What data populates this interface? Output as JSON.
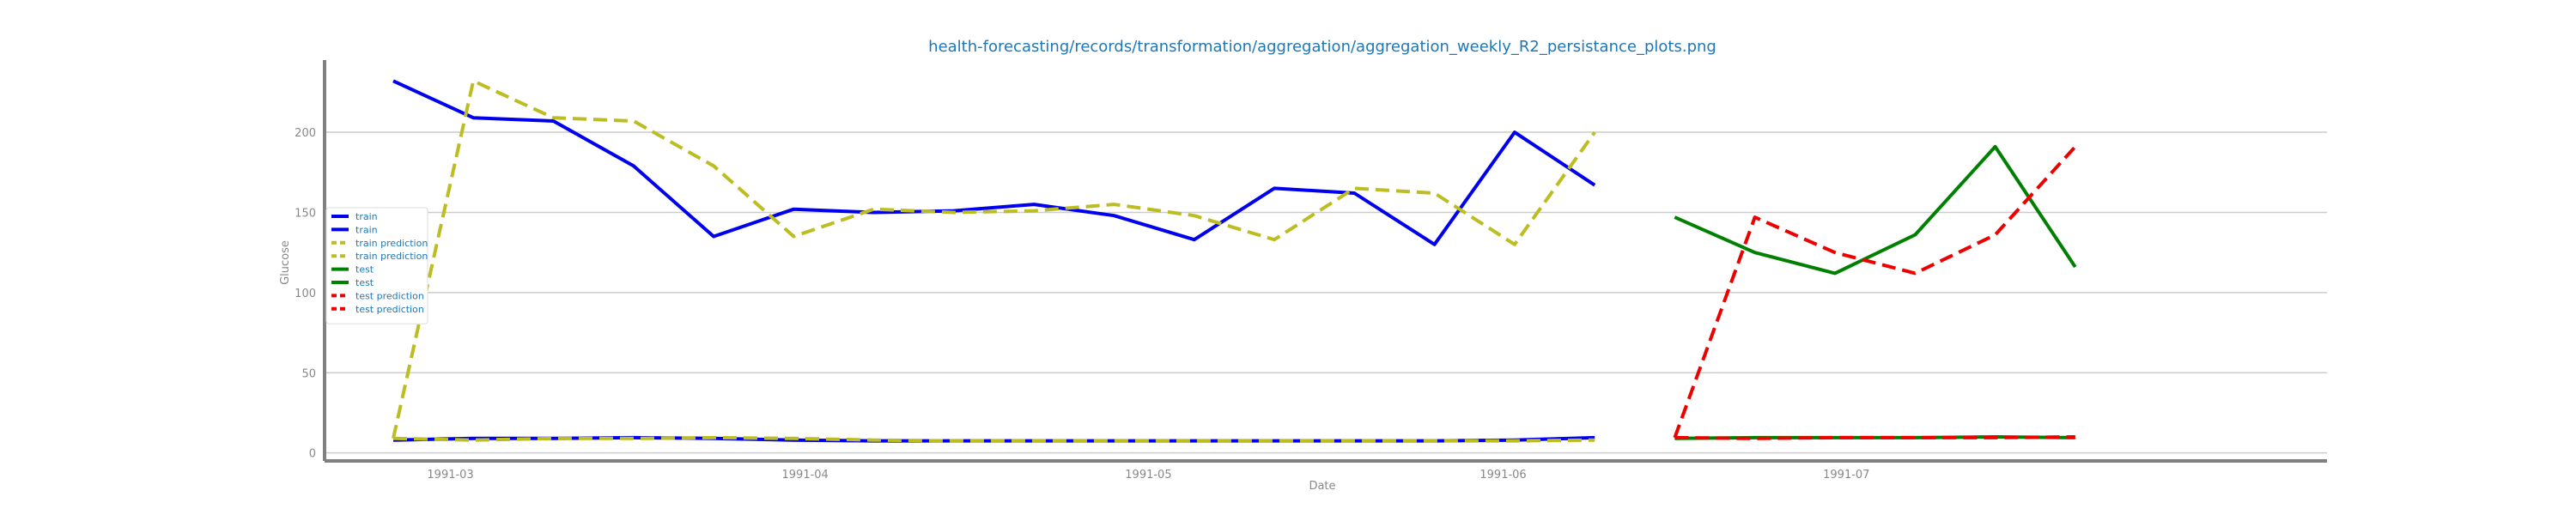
{
  "chart_data": {
    "type": "line",
    "title": "health-forecasting/records/transformation/aggregation/aggregation_weekly_R2_persistance_plots.png",
    "xlabel": "Date",
    "ylabel": "Glucose",
    "ylim": [
      -5,
      245
    ],
    "xlim": [
      "1991-02-18",
      "1991-08-12"
    ],
    "grid": "horizontal",
    "legend_position": "left",
    "yticks": [
      0,
      50,
      100,
      150,
      200
    ],
    "xticks": [
      {
        "date": "1991-03-01",
        "label": "1991-03"
      },
      {
        "date": "1991-04-01",
        "label": "1991-04"
      },
      {
        "date": "1991-05-01",
        "label": "1991-05"
      },
      {
        "date": "1991-06-01",
        "label": "1991-06"
      },
      {
        "date": "1991-07-01",
        "label": "1991-07"
      }
    ],
    "series": [
      {
        "name": "train",
        "color": "#0000ee",
        "dashed": false,
        "x": [
          "1991-02-24",
          "1991-03-03",
          "1991-03-10",
          "1991-03-17",
          "1991-03-24",
          "1991-03-31",
          "1991-04-07",
          "1991-04-14",
          "1991-04-21",
          "1991-04-28",
          "1991-05-05",
          "1991-05-12",
          "1991-05-19",
          "1991-05-26",
          "1991-06-02",
          "1991-06-09"
        ],
        "values": [
          232,
          209,
          207,
          179,
          135,
          152,
          150,
          151,
          155,
          148,
          133,
          165,
          162,
          130,
          200,
          167
        ]
      },
      {
        "name": "train",
        "color": "#0000ee",
        "dashed": false,
        "x": [
          "1991-02-24",
          "1991-03-03",
          "1991-03-10",
          "1991-03-17",
          "1991-03-24",
          "1991-03-31",
          "1991-04-07",
          "1991-04-14",
          "1991-04-21",
          "1991-04-28",
          "1991-05-05",
          "1991-05-12",
          "1991-05-19",
          "1991-05-26",
          "1991-06-02",
          "1991-06-09"
        ],
        "values": [
          8,
          9,
          9,
          9.5,
          9,
          8,
          7.5,
          7.5,
          7.5,
          7.5,
          7.5,
          7.5,
          7.5,
          7.5,
          8,
          9.5
        ]
      },
      {
        "name": "train prediction",
        "color": "#bcbd22",
        "dashed": true,
        "x": [
          "1991-02-24",
          "1991-03-03",
          "1991-03-10",
          "1991-03-17",
          "1991-03-24",
          "1991-03-31",
          "1991-04-07",
          "1991-04-14",
          "1991-04-21",
          "1991-04-28",
          "1991-05-05",
          "1991-05-12",
          "1991-05-19",
          "1991-05-26",
          "1991-06-02",
          "1991-06-09"
        ],
        "values": [
          9,
          232,
          209,
          207,
          179,
          135,
          152,
          150,
          151,
          155,
          148,
          133,
          165,
          162,
          130,
          200
        ]
      },
      {
        "name": "train prediction",
        "color": "#bcbd22",
        "dashed": true,
        "x": [
          "1991-02-24",
          "1991-03-03",
          "1991-03-10",
          "1991-03-17",
          "1991-03-24",
          "1991-03-31",
          "1991-04-07",
          "1991-04-14",
          "1991-04-21",
          "1991-04-28",
          "1991-05-05",
          "1991-05-12",
          "1991-05-19",
          "1991-05-26",
          "1991-06-02",
          "1991-06-09"
        ],
        "values": [
          9,
          8,
          9,
          9,
          9.5,
          9,
          8,
          7.5,
          7.5,
          7.5,
          7.5,
          7.5,
          7.5,
          7.5,
          7.5,
          8
        ]
      },
      {
        "name": "test",
        "color": "#008000",
        "dashed": false,
        "x": [
          "1991-06-16",
          "1991-06-23",
          "1991-06-30",
          "1991-07-07",
          "1991-07-14",
          "1991-07-21"
        ],
        "values": [
          147,
          125,
          112,
          136,
          191,
          116
        ]
      },
      {
        "name": "test",
        "color": "#008000",
        "dashed": false,
        "x": [
          "1991-06-16",
          "1991-06-23",
          "1991-06-30",
          "1991-07-07",
          "1991-07-14",
          "1991-07-21"
        ],
        "values": [
          9,
          9.5,
          9.5,
          9.5,
          10,
          9.5
        ]
      },
      {
        "name": "test prediction",
        "color": "#ee0000",
        "dashed": true,
        "x": [
          "1991-06-16",
          "1991-06-23",
          "1991-06-30",
          "1991-07-07",
          "1991-07-14",
          "1991-07-21"
        ],
        "values": [
          9.5,
          147,
          125,
          112,
          136,
          191
        ]
      },
      {
        "name": "test prediction",
        "color": "#ee0000",
        "dashed": true,
        "x": [
          "1991-06-16",
          "1991-06-23",
          "1991-06-30",
          "1991-07-07",
          "1991-07-14",
          "1991-07-21"
        ],
        "values": [
          9.5,
          9,
          9.5,
          9.5,
          9.5,
          10
        ]
      }
    ]
  }
}
